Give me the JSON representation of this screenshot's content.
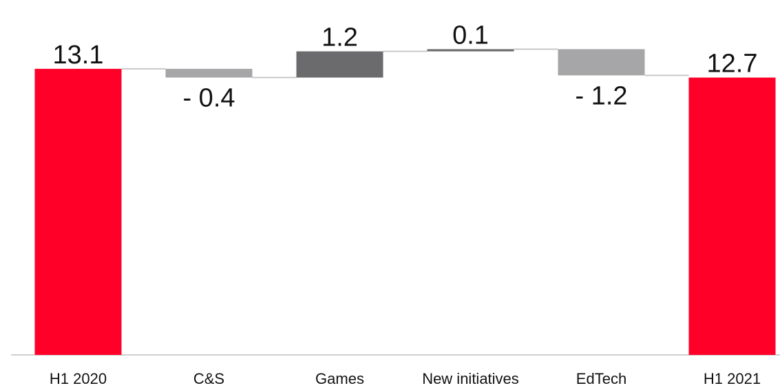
{
  "chart_data": {
    "type": "waterfall",
    "categories": [
      "H1 2020",
      "C&S",
      "Games",
      "New initiatives",
      "EdTech",
      "H1 2021"
    ],
    "values": [
      13.1,
      -0.4,
      1.2,
      0.1,
      -1.2,
      12.7
    ],
    "kinds": [
      "total",
      "delta",
      "delta",
      "delta",
      "delta",
      "total"
    ],
    "value_labels": [
      "13.1",
      "- 0.4",
      "1.2",
      "0.1",
      "- 1.2",
      "12.7"
    ],
    "ylim": [
      0,
      14.5
    ],
    "grid": false,
    "legend": "none",
    "colors": {
      "total": "#ff0028",
      "decrease": "#a6a6a8",
      "increase": "#6b6b6d",
      "connector": "#c8c8c8",
      "axis": "#cfcfcf"
    }
  }
}
